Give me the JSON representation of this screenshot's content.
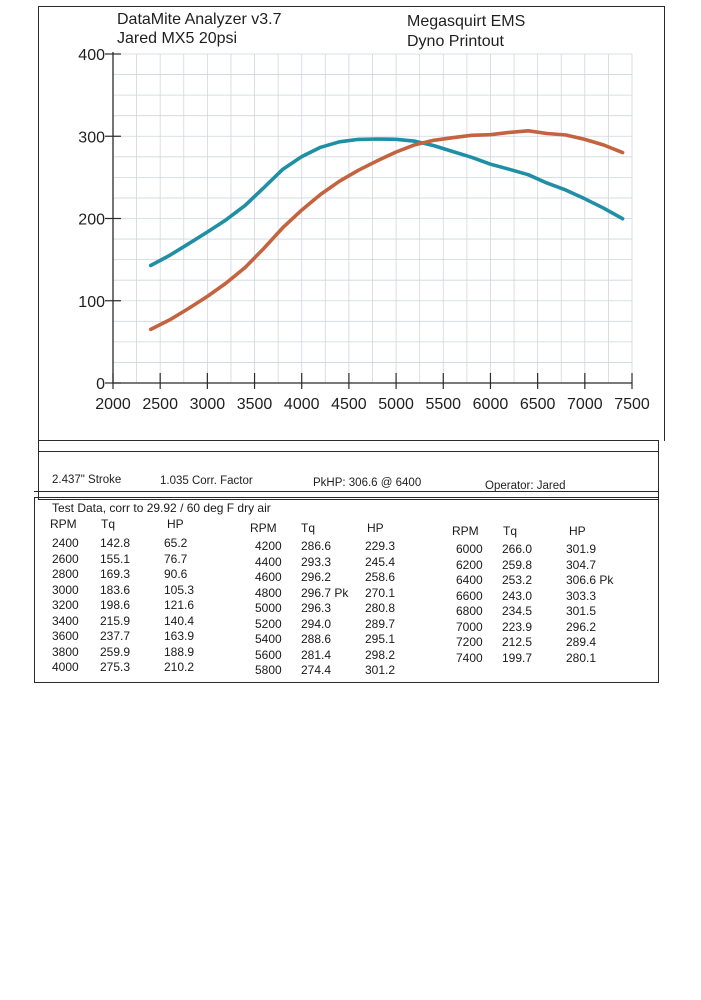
{
  "header": {
    "left_line1": "DataMite Analyzer v3.7",
    "left_line2": "Jared MX5 20psi",
    "right_line1": "Megasquirt EMS",
    "right_line2": "Dyno Printout"
  },
  "info_bar": {
    "stroke": "2.437\" Stroke",
    "corr_factor": "1.035 Corr. Factor",
    "peak_hp": "PkHP: 306.6 @  6400",
    "operator": "Operator: Jared"
  },
  "test_data": {
    "title": "Test Data, corr to 29.92 / 60 deg F dry air",
    "headers": {
      "rpm": "RPM",
      "tq": "Tq",
      "hp": "HP"
    },
    "columns": [
      [
        {
          "rpm": "2400",
          "tq": "142.8",
          "hp": "65.2"
        },
        {
          "rpm": "2600",
          "tq": "155.1",
          "hp": "76.7"
        },
        {
          "rpm": "2800",
          "tq": "169.3",
          "hp": "90.6"
        },
        {
          "rpm": "3000",
          "tq": "183.6",
          "hp": "105.3"
        },
        {
          "rpm": "3200",
          "tq": "198.6",
          "hp": "121.6"
        },
        {
          "rpm": "3400",
          "tq": "215.9",
          "hp": "140.4"
        },
        {
          "rpm": "3600",
          "tq": "237.7",
          "hp": "163.9"
        },
        {
          "rpm": "3800",
          "tq": "259.9",
          "hp": "188.9"
        },
        {
          "rpm": "4000",
          "tq": "275.3",
          "hp": "210.2"
        }
      ],
      [
        {
          "rpm": "4200",
          "tq": "286.6",
          "hp": "229.3"
        },
        {
          "rpm": "4400",
          "tq": "293.3",
          "hp": "245.4"
        },
        {
          "rpm": "4600",
          "tq": "296.2",
          "hp": "258.6"
        },
        {
          "rpm": "4800",
          "tq": "296.7 Pk",
          "hp": "270.1"
        },
        {
          "rpm": "5000",
          "tq": "296.3",
          "hp": "280.8"
        },
        {
          "rpm": "5200",
          "tq": "294.0",
          "hp": "289.7"
        },
        {
          "rpm": "5400",
          "tq": "288.6",
          "hp": "295.1"
        },
        {
          "rpm": "5600",
          "tq": "281.4",
          "hp": "298.2"
        },
        {
          "rpm": "5800",
          "tq": "274.4",
          "hp": "301.2"
        }
      ],
      [
        {
          "rpm": "6000",
          "tq": "266.0",
          "hp": "301.9"
        },
        {
          "rpm": "6200",
          "tq": "259.8",
          "hp": "304.7"
        },
        {
          "rpm": "6400",
          "tq": "253.2",
          "hp": "306.6 Pk"
        },
        {
          "rpm": "6600",
          "tq": "243.0",
          "hp": "303.3"
        },
        {
          "rpm": "6800",
          "tq": "234.5",
          "hp": "301.5"
        },
        {
          "rpm": "7000",
          "tq": "223.9",
          "hp": "296.2"
        },
        {
          "rpm": "7200",
          "tq": "212.5",
          "hp": "289.4"
        },
        {
          "rpm": "7400",
          "tq": "199.7",
          "hp": "280.1"
        }
      ]
    ]
  },
  "chart_data": {
    "type": "line",
    "title": "",
    "xlabel": "",
    "ylabel": "",
    "xlim": [
      2000,
      7500
    ],
    "ylim": [
      0,
      400
    ],
    "x_ticks": [
      "2000",
      "2500",
      "3000",
      "3500",
      "4000",
      "4500",
      "5000",
      "5500",
      "6000",
      "6500",
      "7000",
      "7500"
    ],
    "y_ticks": [
      "0",
      "100",
      "200",
      "300",
      "400"
    ],
    "grid": true,
    "legend": "none",
    "x": [
      2400,
      2600,
      2800,
      3000,
      3200,
      3400,
      3600,
      3800,
      4000,
      4200,
      4400,
      4600,
      4800,
      5000,
      5200,
      5400,
      5600,
      5800,
      6000,
      6200,
      6400,
      6600,
      6800,
      7000,
      7200,
      7400
    ],
    "series": [
      {
        "color": "#1f8fa6",
        "values": [
          142.8,
          155.1,
          169.3,
          183.6,
          198.6,
          215.9,
          237.7,
          259.9,
          275.3,
          286.6,
          293.3,
          296.2,
          296.7,
          296.3,
          294.0,
          288.6,
          281.4,
          274.4,
          266.0,
          259.8,
          253.2,
          243.0,
          234.5,
          223.9,
          212.5,
          199.7
        ]
      },
      {
        "color": "#c4633f",
        "values": [
          65.2,
          76.7,
          90.6,
          105.3,
          121.6,
          140.4,
          163.9,
          188.9,
          210.2,
          229.3,
          245.4,
          258.6,
          270.1,
          280.8,
          289.7,
          295.1,
          298.2,
          301.2,
          301.9,
          304.7,
          306.6,
          303.3,
          301.5,
          296.2,
          289.4,
          280.1
        ]
      }
    ]
  }
}
